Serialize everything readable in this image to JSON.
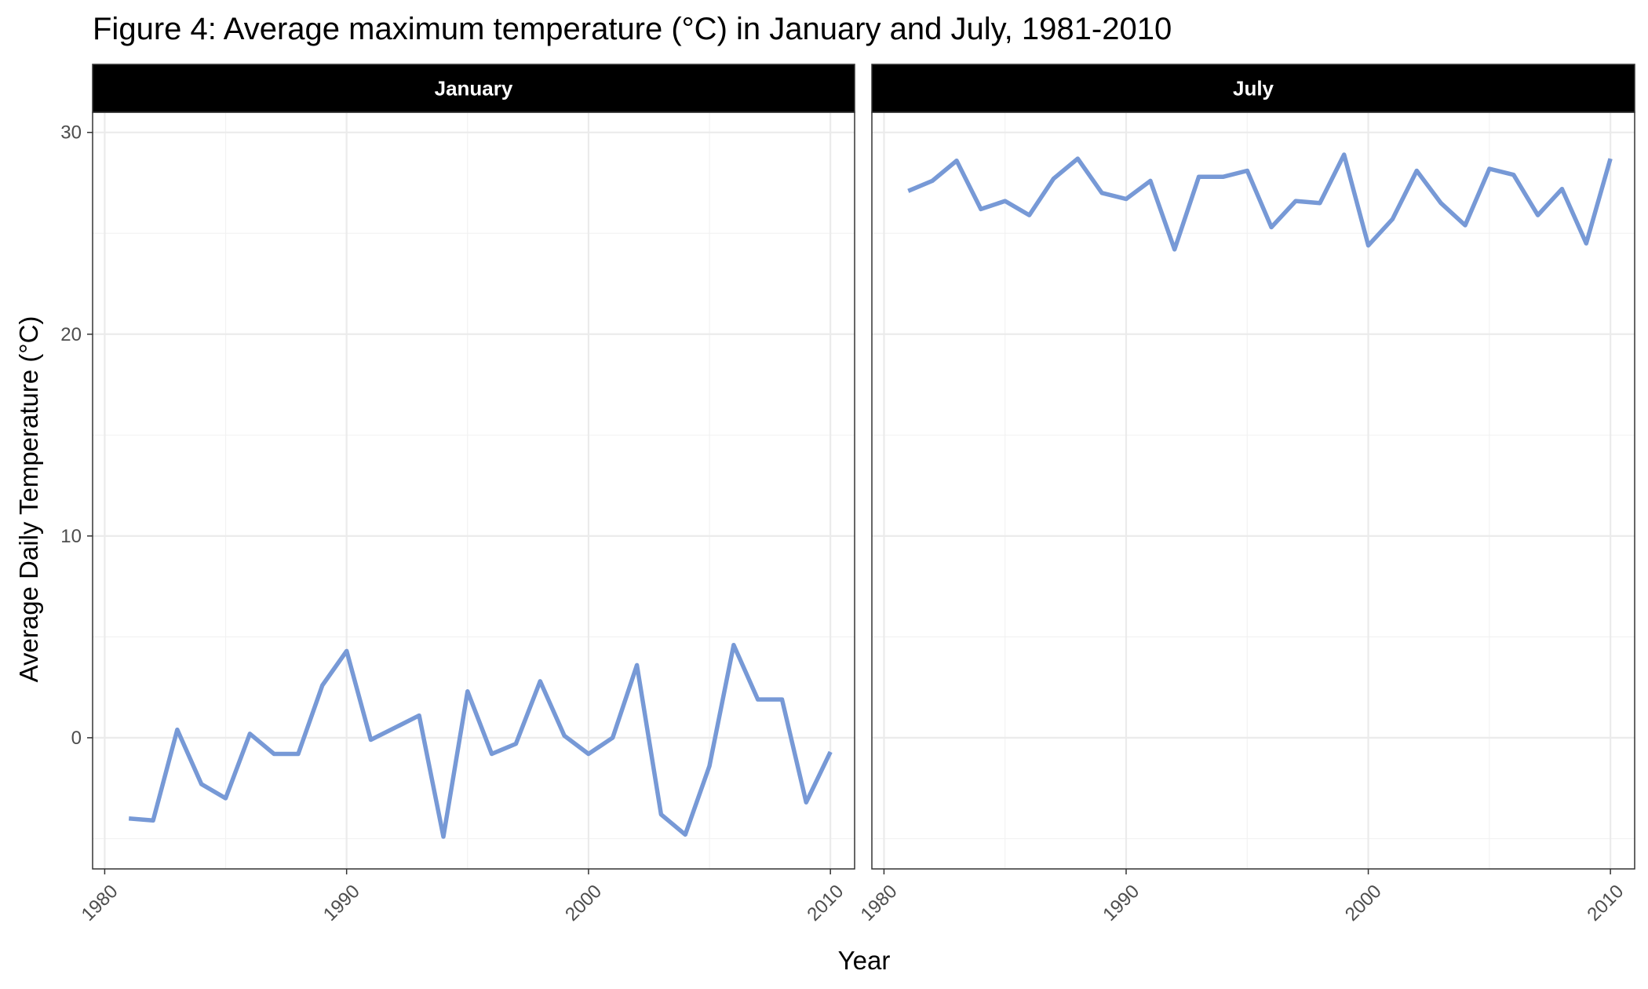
{
  "chart_data": {
    "type": "line",
    "title": "Figure 4: Average maximum temperature (°C) in January and July, 1981-2010",
    "xlabel": "Year",
    "ylabel": "Average Daily Temperature (°C)",
    "xlim": [
      1979.5,
      2011.0
    ],
    "ylim": [
      -6.5,
      31.0
    ],
    "x_ticks": [
      1980,
      1990,
      2000,
      2010
    ],
    "y_ticks": [
      0,
      10,
      20,
      30
    ],
    "grid": true,
    "line_color": "#7799d6",
    "strip_color": "#000000",
    "x": [
      1981,
      1982,
      1983,
      1984,
      1985,
      1986,
      1987,
      1988,
      1989,
      1990,
      1991,
      1992,
      1993,
      1994,
      1995,
      1996,
      1997,
      1998,
      1999,
      2000,
      2001,
      2002,
      2003,
      2004,
      2005,
      2006,
      2007,
      2008,
      2009,
      2010
    ],
    "panels": [
      {
        "name": "January",
        "values": [
          -4.0,
          -4.1,
          0.4,
          -2.3,
          -3.0,
          0.2,
          -0.8,
          -0.8,
          2.6,
          4.3,
          -0.1,
          0.5,
          1.1,
          -4.9,
          2.3,
          -0.8,
          -0.3,
          2.8,
          0.1,
          -0.8,
          0.0,
          3.6,
          -3.8,
          -4.8,
          -1.4,
          4.6,
          1.9,
          1.9,
          -3.2,
          -0.7
        ]
      },
      {
        "name": "July",
        "values": [
          27.1,
          27.6,
          28.6,
          26.2,
          26.6,
          25.9,
          27.7,
          28.7,
          27.0,
          26.7,
          27.6,
          24.2,
          27.8,
          27.8,
          28.1,
          25.3,
          26.6,
          26.5,
          28.9,
          24.4,
          25.7,
          28.1,
          26.5,
          25.4,
          28.2,
          27.9,
          25.9,
          27.2,
          24.5,
          28.7
        ]
      }
    ]
  }
}
